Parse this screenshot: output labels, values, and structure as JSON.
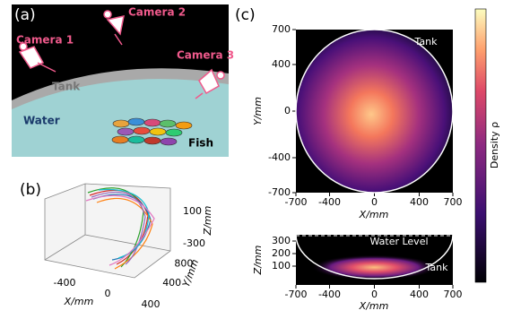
{
  "panel_a": {
    "label": "(a)",
    "camera_1": "Camera 1",
    "camera_2": "Camera 2",
    "camera_3": "Camera 3",
    "tank": "Tank",
    "water": "Water",
    "fish": "Fish"
  },
  "panel_b": {
    "label": "(b)",
    "xlabel": "X/mm",
    "ylabel": "Y/mm",
    "zlabel": "Z/mm",
    "xticks": [
      -400,
      0,
      400
    ],
    "yticks": [
      400,
      800
    ],
    "zticks": [
      -300,
      100
    ]
  },
  "panel_c": {
    "label": "(c)",
    "top": {
      "xlabel": "X/mm",
      "ylabel": "Y/mm",
      "xlim": [
        -700,
        700
      ],
      "ylim": [
        -700,
        700
      ],
      "xticks": [
        -700,
        -400,
        0,
        400,
        700
      ],
      "yticks": [
        -700,
        -400,
        0,
        400,
        700
      ],
      "annotation": "Tank"
    },
    "bottom": {
      "xlabel": "X/mm",
      "ylabel": "Z/mm",
      "xlim": [
        -700,
        700
      ],
      "ylim": [
        -50,
        350
      ],
      "xticks": [
        -700,
        -400,
        0,
        400,
        700
      ],
      "yticks": [
        100,
        200,
        300
      ],
      "water_level": "Water Level",
      "annotation": "Tank"
    },
    "colorbar_label": "Density ρ"
  }
}
